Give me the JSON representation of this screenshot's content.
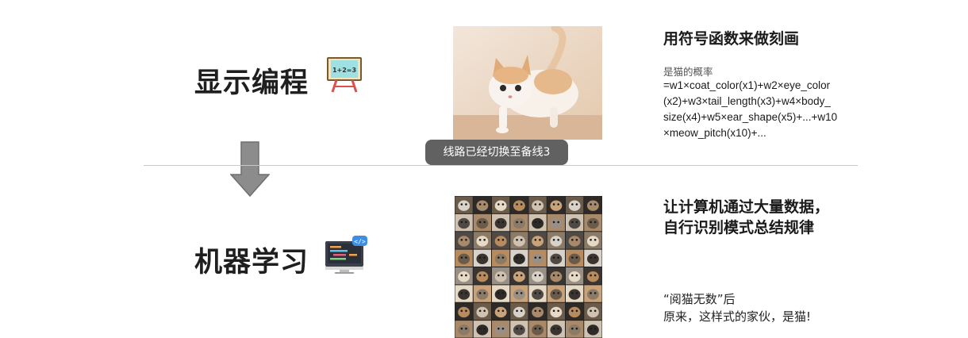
{
  "left": {
    "top_label": "显示编程",
    "bottom_label": "机器学习",
    "board_icon_text": "1+2=3",
    "board_icon": "blackboard-icon",
    "monitor_icon": "code-monitor-icon",
    "arrow_icon": "down-arrow-icon"
  },
  "top_section": {
    "heading": "用符号函数来做刻画",
    "formula_label": "是猫的概率",
    "formula": [
      "=w1×coat_color(x1)+w2×eye_color",
      "(x2)+w3×tail_length(x3)+w4×body_",
      "size(x4)+w5×ear_shape(x5)+...+w10",
      "×meow_pitch(x10)+..."
    ]
  },
  "bottom_section": {
    "heading_line1": "让计算机通过大量数据，",
    "heading_line2": "自行识别模式总结规律",
    "quote_line1": "“阅猫无数”后",
    "quote_line2": "原来，这样式的家伙，是猫!"
  },
  "toast": {
    "text": "线路已经切换至备线3"
  },
  "colors": {
    "toast_bg": "#4b4b4b",
    "arrow": "#8c8c8c",
    "divider": "#c8c8c8"
  }
}
